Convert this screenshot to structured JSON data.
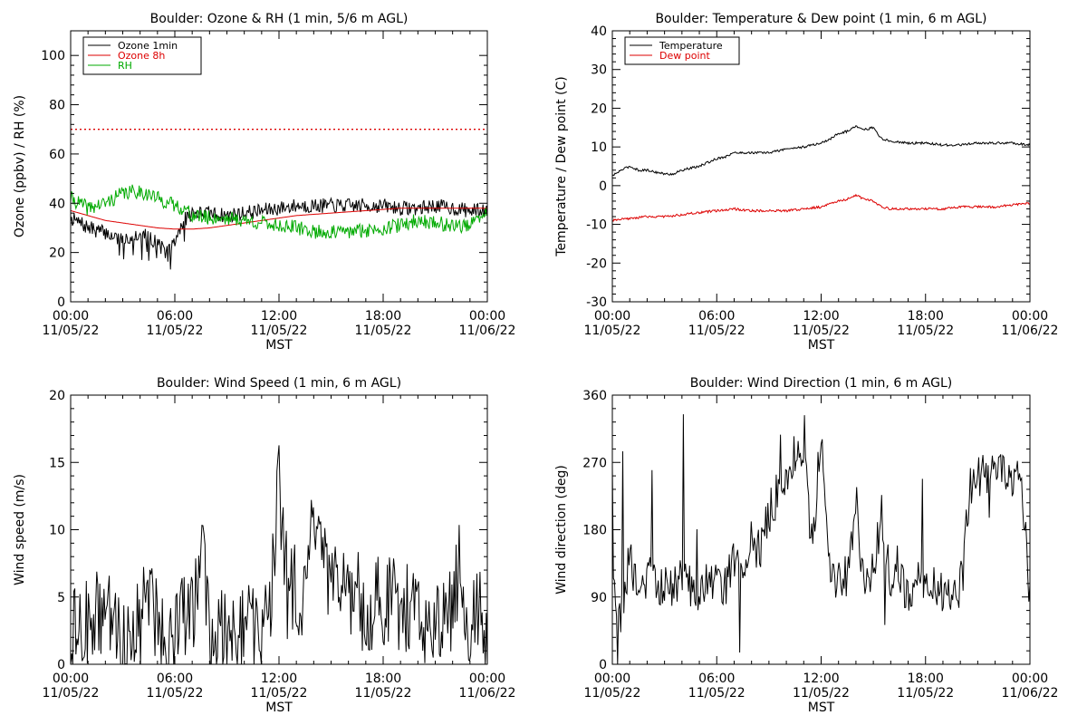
{
  "chart_data": [
    {
      "type": "line",
      "title": "Boulder: Ozone & RH (1 min, 5/6 m AGL)",
      "xlabel": "MST",
      "ylabel": "Ozone (ppbv) / RH (%)",
      "xlim": [
        "00:00 11/05/22",
        "00:00 11/06/22"
      ],
      "ylim": [
        0,
        110
      ],
      "yticks": [
        "0",
        "20",
        "40",
        "60",
        "80",
        "100"
      ],
      "xticks": [
        {
          "time": "00:00",
          "date": "11/05/22"
        },
        {
          "time": "06:00",
          "date": "11/05/22"
        },
        {
          "time": "12:00",
          "date": "11/05/22"
        },
        {
          "time": "18:00",
          "date": "11/05/22"
        },
        {
          "time": "00:00",
          "date": "11/06/22"
        }
      ],
      "legend_position": "top-left",
      "reference_line": {
        "value": 70,
        "color": "#dd0000",
        "style": "dotted"
      },
      "series": [
        {
          "name": "Ozone 1min",
          "color": "#000000",
          "x": [
            0,
            1,
            2,
            3,
            4,
            5,
            5.5,
            6,
            6.5,
            7,
            8,
            9,
            10,
            11,
            12,
            13,
            14,
            15,
            16,
            17,
            18,
            19,
            20,
            21,
            22,
            23,
            24
          ],
          "y": [
            34,
            30,
            28,
            25,
            28,
            24,
            20,
            24,
            33,
            36,
            36,
            35,
            36,
            37,
            38,
            39,
            39,
            39,
            39,
            39,
            39,
            38,
            38,
            39,
            38,
            37,
            37
          ]
        },
        {
          "name": "Ozone 8h",
          "color": "#dd0000",
          "x": [
            0,
            1,
            2,
            3,
            4,
            5,
            6,
            7,
            8,
            9,
            10,
            11,
            12,
            13,
            14,
            15,
            16,
            17,
            18,
            19,
            20,
            21,
            22,
            23,
            24
          ],
          "y": [
            37,
            35,
            33,
            32,
            31,
            30,
            29.5,
            29.5,
            30,
            31,
            32,
            33,
            34,
            35,
            35.5,
            36,
            36.5,
            37,
            37.5,
            38,
            38,
            38,
            38,
            38,
            38
          ]
        },
        {
          "name": "RH",
          "color": "#00aa00",
          "x": [
            0,
            1,
            2,
            3,
            4,
            5,
            6,
            6.5,
            7,
            8,
            9,
            10,
            11,
            12,
            13,
            14,
            15,
            16,
            17,
            18,
            19,
            20,
            21,
            22,
            23,
            24
          ],
          "y": [
            42,
            38,
            40,
            44,
            45,
            42,
            39,
            38,
            35,
            34,
            34,
            33,
            32,
            31,
            30,
            28.5,
            28,
            28.5,
            29,
            30,
            31,
            33,
            32,
            31,
            31,
            36
          ]
        }
      ]
    },
    {
      "type": "line",
      "title": "Boulder: Temperature & Dew point (1 min, 6 m AGL)",
      "xlabel": "MST",
      "ylabel": "Temperature / Dew point (C)",
      "xlim": [
        "00:00 11/05/22",
        "00:00 11/06/22"
      ],
      "ylim": [
        -30,
        40
      ],
      "yticks": [
        "-30",
        "-20",
        "-10",
        "0",
        "10",
        "20",
        "30",
        "40"
      ],
      "xticks": [
        {
          "time": "00:00",
          "date": "11/05/22"
        },
        {
          "time": "06:00",
          "date": "11/05/22"
        },
        {
          "time": "12:00",
          "date": "11/05/22"
        },
        {
          "time": "18:00",
          "date": "11/05/22"
        },
        {
          "time": "00:00",
          "date": "11/06/22"
        }
      ],
      "legend_position": "top-left",
      "series": [
        {
          "name": "Temperature",
          "color": "#000000",
          "x": [
            0,
            0.5,
            1,
            1.5,
            2,
            2.5,
            3,
            3.5,
            4,
            4.5,
            5,
            5.5,
            6,
            6.5,
            7,
            8,
            9,
            10,
            11,
            12,
            12.5,
            13,
            13.5,
            14,
            14.5,
            15,
            15.5,
            16,
            17,
            18,
            19,
            20,
            21,
            22,
            23,
            24
          ],
          "y": [
            2.5,
            4,
            5,
            4,
            4,
            3.5,
            3,
            3,
            4,
            4.5,
            5,
            6,
            7,
            7.5,
            8.5,
            8.5,
            8.5,
            9.5,
            10,
            11,
            12,
            13.5,
            14,
            15.5,
            14.5,
            15,
            12,
            11.5,
            11,
            11,
            10.5,
            10.5,
            11,
            11,
            11,
            10.5
          ]
        },
        {
          "name": "Dew point",
          "color": "#dd0000",
          "x": [
            0,
            1,
            2,
            3,
            4,
            5,
            6,
            7,
            8,
            9,
            10,
            11,
            12,
            12.5,
            13,
            13.5,
            14,
            14.5,
            15,
            15.5,
            16,
            17,
            18,
            19,
            20,
            21,
            22,
            23,
            24
          ],
          "y": [
            -9,
            -8.5,
            -8,
            -8,
            -7.5,
            -7,
            -6.5,
            -6,
            -6.5,
            -6.5,
            -6.5,
            -6,
            -5.5,
            -4.5,
            -4,
            -3.5,
            -2.5,
            -3.5,
            -4,
            -5.5,
            -6,
            -6,
            -6,
            -6,
            -5.5,
            -5.5,
            -5.5,
            -5,
            -4.5
          ]
        }
      ]
    },
    {
      "type": "line",
      "title": "Boulder: Wind Speed (1 min, 6 m AGL)",
      "xlabel": "MST",
      "ylabel": "Wind speed (m/s)",
      "xlim": [
        "00:00 11/05/22",
        "00:00 11/06/22"
      ],
      "ylim": [
        0,
        20
      ],
      "yticks": [
        "0",
        "5",
        "10",
        "15",
        "20"
      ],
      "xticks": [
        {
          "time": "00:00",
          "date": "11/05/22"
        },
        {
          "time": "06:00",
          "date": "11/05/22"
        },
        {
          "time": "12:00",
          "date": "11/05/22"
        },
        {
          "time": "18:00",
          "date": "11/05/22"
        },
        {
          "time": "00:00",
          "date": "11/06/22"
        }
      ],
      "series": [
        {
          "color": "#000000",
          "x": [
            0,
            1,
            2,
            3,
            4,
            4.5,
            5,
            6,
            6.5,
            7,
            7.5,
            8,
            9,
            10,
            11,
            11.5,
            12,
            12.5,
            13,
            13.5,
            14,
            15,
            16,
            17,
            18,
            19,
            20,
            21,
            22,
            22.5,
            23,
            23.5,
            24
          ],
          "y": [
            2,
            3,
            4,
            2,
            3,
            6,
            3,
            2,
            4,
            3,
            10,
            3,
            2,
            3,
            2,
            4,
            14,
            5,
            6,
            4,
            11,
            5,
            6,
            4,
            5,
            4,
            4,
            3,
            4,
            8,
            2,
            4,
            2
          ]
        }
      ]
    },
    {
      "type": "line",
      "title": "Boulder: Wind Direction (1 min, 6 m AGL)",
      "xlabel": "MST",
      "ylabel": "Wind direction (deg)",
      "xlim": [
        "00:00 11/05/22",
        "00:00 11/06/22"
      ],
      "ylim": [
        0,
        360
      ],
      "yticks": [
        "0",
        "90",
        "180",
        "270",
        "360"
      ],
      "xticks": [
        {
          "time": "00:00",
          "date": "11/05/22"
        },
        {
          "time": "06:00",
          "date": "11/05/22"
        },
        {
          "time": "12:00",
          "date": "11/05/22"
        },
        {
          "time": "18:00",
          "date": "11/05/22"
        },
        {
          "time": "00:00",
          "date": "11/06/22"
        }
      ],
      "series": [
        {
          "color": "#000000",
          "x": [
            0,
            0.5,
            1,
            1.5,
            2,
            3,
            4,
            5,
            6,
            6.5,
            7,
            7.5,
            8,
            8.5,
            9,
            9.5,
            10,
            10.5,
            11,
            11.5,
            12,
            12.5,
            13,
            13.5,
            14,
            14.5,
            15,
            15.5,
            16,
            17,
            18,
            19,
            20,
            20.5,
            21,
            22,
            23,
            23.5,
            24
          ],
          "y": [
            90,
            60,
            150,
            80,
            120,
            100,
            110,
            100,
            120,
            100,
            140,
            110,
            170,
            150,
            200,
            230,
            260,
            280,
            300,
            150,
            320,
            130,
            110,
            120,
            220,
            100,
            130,
            200,
            110,
            100,
            120,
            90,
            100,
            240,
            250,
            260,
            240,
            250,
            90
          ]
        }
      ]
    }
  ]
}
